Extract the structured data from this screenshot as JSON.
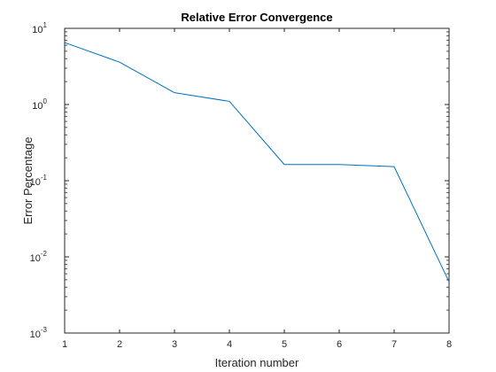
{
  "chart_data": {
    "type": "line",
    "title": "Relative Error Convergence",
    "xlabel": "Iteration number",
    "ylabel": "Error Percentage",
    "x": [
      1,
      2,
      3,
      4,
      5,
      6,
      7,
      8
    ],
    "series": [
      {
        "values": [
          6.5,
          3.6,
          1.43,
          1.1,
          0.163,
          0.163,
          0.153,
          0.0047
        ]
      }
    ],
    "xlim": [
      1,
      8
    ],
    "ylim": [
      0.001,
      10
    ],
    "yscale": "log",
    "xticks": [
      "1",
      "2",
      "3",
      "4",
      "5",
      "6",
      "7",
      "8"
    ],
    "yticks": [
      {
        "base": "10",
        "exp": "1",
        "value": 10
      },
      {
        "base": "10",
        "exp": "0",
        "value": 1
      },
      {
        "base": "10",
        "exp": "-1",
        "value": 0.1
      },
      {
        "base": "10",
        "exp": "-2",
        "value": 0.01
      },
      {
        "base": "10",
        "exp": "-3",
        "value": 0.001
      }
    ],
    "grid": false,
    "line_color": "#0072BD",
    "axis_color": "#262626"
  }
}
